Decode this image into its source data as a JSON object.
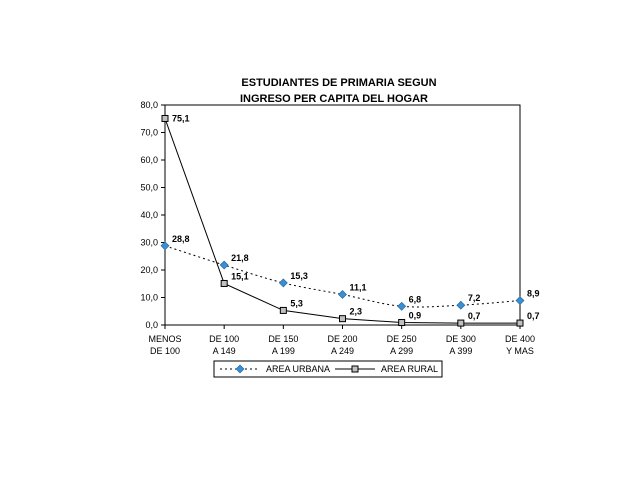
{
  "chart_data": {
    "type": "line",
    "title_lines": [
      "ESTUDIANTES DE PRIMARIA SEGUN",
      "INGRESO PER CAPITA DEL HOGAR"
    ],
    "categories": [
      [
        "MENOS",
        "DE 100"
      ],
      [
        "DE 100",
        "A 149"
      ],
      [
        "DE 150",
        "A 199"
      ],
      [
        "DE 200",
        "A 249"
      ],
      [
        "DE 250",
        "A 299"
      ],
      [
        "DE 300",
        "A 399"
      ],
      [
        "DE 400",
        "Y MAS"
      ]
    ],
    "ylim": [
      0,
      80
    ],
    "ytick_values": [
      0,
      10,
      20,
      30,
      40,
      50,
      60,
      70,
      80
    ],
    "ytick_labels": [
      "0,0",
      "10,0",
      "20,0",
      "30,0",
      "40,0",
      "50,0",
      "60,0",
      "70,0",
      "80,0"
    ],
    "grid": false,
    "legend_position": "bottom",
    "series": [
      {
        "name": "AREA URBANA",
        "values": [
          28.8,
          21.8,
          15.3,
          11.1,
          6.8,
          7.2,
          8.9
        ],
        "labels": [
          "28,8",
          "21,8",
          "15,3",
          "11,1",
          "6,8",
          "7,2",
          "8,9"
        ],
        "line_style": "dotted",
        "marker": "diamond",
        "color": "#000000",
        "marker_color": "#3a8fd0"
      },
      {
        "name": "AREA RURAL",
        "values": [
          75.1,
          15.1,
          5.3,
          2.3,
          0.9,
          0.7,
          0.7
        ],
        "labels": [
          "75,1",
          "15,1",
          "5,3",
          "2,3",
          "0,9",
          "0,7",
          "0,7"
        ],
        "line_style": "solid",
        "marker": "square",
        "color": "#000000",
        "marker_color": "#c0c0c0"
      }
    ]
  }
}
